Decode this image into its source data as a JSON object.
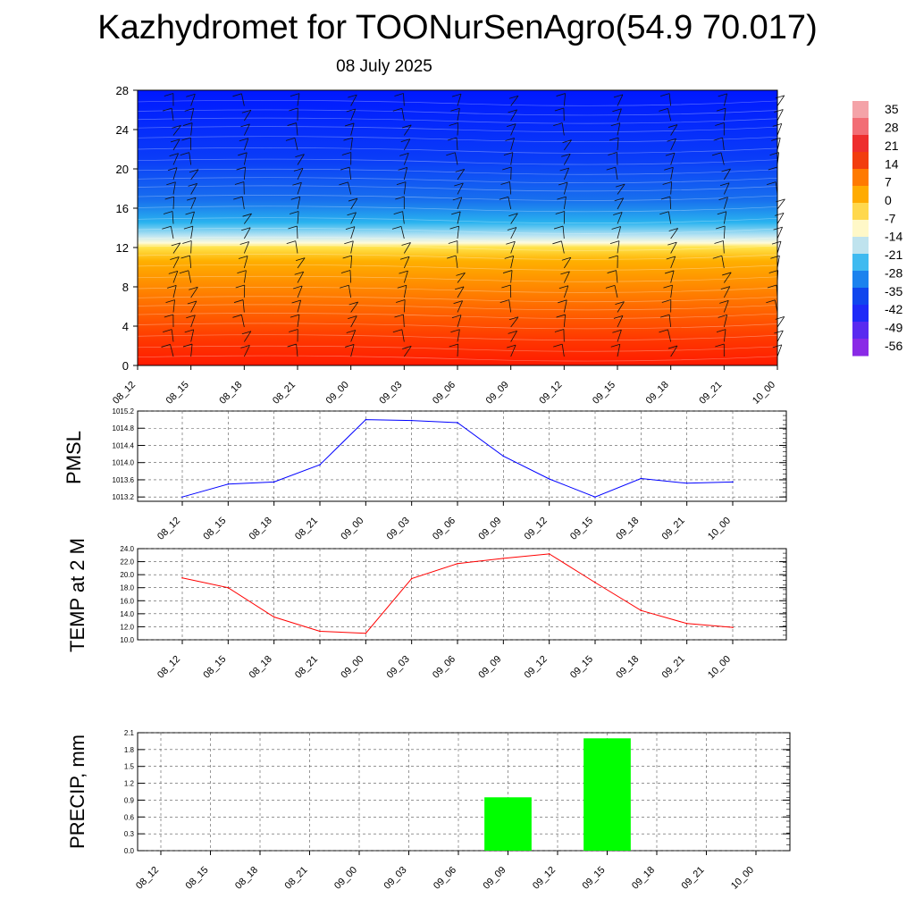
{
  "title": "Kazhydromet for TOONurSenAgro(54.9 70.017)",
  "subtitle": "08 July 2025",
  "time_labels": [
    "08_12",
    "08_15",
    "08_18",
    "08_21",
    "09_00",
    "09_03",
    "09_06",
    "09_09",
    "09_12",
    "09_15",
    "09_18",
    "09_21",
    "10_00"
  ],
  "chart_data": [
    {
      "type": "heatmap",
      "ylim": [
        0,
        28
      ],
      "y_ticks": [
        "0",
        "4",
        "8",
        "12",
        "16",
        "20",
        "24",
        "28"
      ],
      "colorbar": {
        "labels": [
          "35",
          "28",
          "21",
          "14",
          "7",
          "0",
          "-7",
          "-14",
          "-21",
          "-28",
          "-35",
          "-42",
          "-49",
          "-56"
        ]
      }
    },
    {
      "type": "line",
      "ylabel": "PMSL",
      "ylim": [
        1013.1,
        1015.2
      ],
      "y_ticks": [
        "1013.2",
        "1013.6",
        "1014.0",
        "1014.4",
        "1014.8",
        "1015.2"
      ],
      "values": [
        1013.2,
        1013.5,
        1013.55,
        1013.95,
        1015.0,
        1014.98,
        1014.93,
        1014.15,
        1013.62,
        1013.2,
        1013.63,
        1013.52,
        1013.55
      ],
      "color": "#0000ff"
    },
    {
      "type": "line",
      "ylabel": "TEMP at 2 M",
      "ylim": [
        10.0,
        24.0
      ],
      "y_ticks": [
        "10.0",
        "12.0",
        "14.0",
        "16.0",
        "18.0",
        "20.0",
        "22.0",
        "24.0"
      ],
      "values": [
        19.5,
        18.0,
        13.5,
        11.3,
        11.0,
        19.4,
        21.7,
        22.5,
        23.2,
        18.8,
        14.5,
        12.5,
        11.9
      ],
      "color": "#ff0000"
    },
    {
      "type": "bar",
      "ylabel": "PRECIP, mm",
      "ylim": [
        0.0,
        2.1
      ],
      "y_ticks": [
        "0.0",
        "0.3",
        "0.6",
        "0.9",
        "1.2",
        "1.5",
        "1.8",
        "2.1"
      ],
      "values": [
        0,
        0,
        0,
        0,
        0,
        0,
        0,
        0.95,
        0,
        2.0,
        0,
        0,
        0
      ],
      "color": "#00ff00"
    }
  ]
}
